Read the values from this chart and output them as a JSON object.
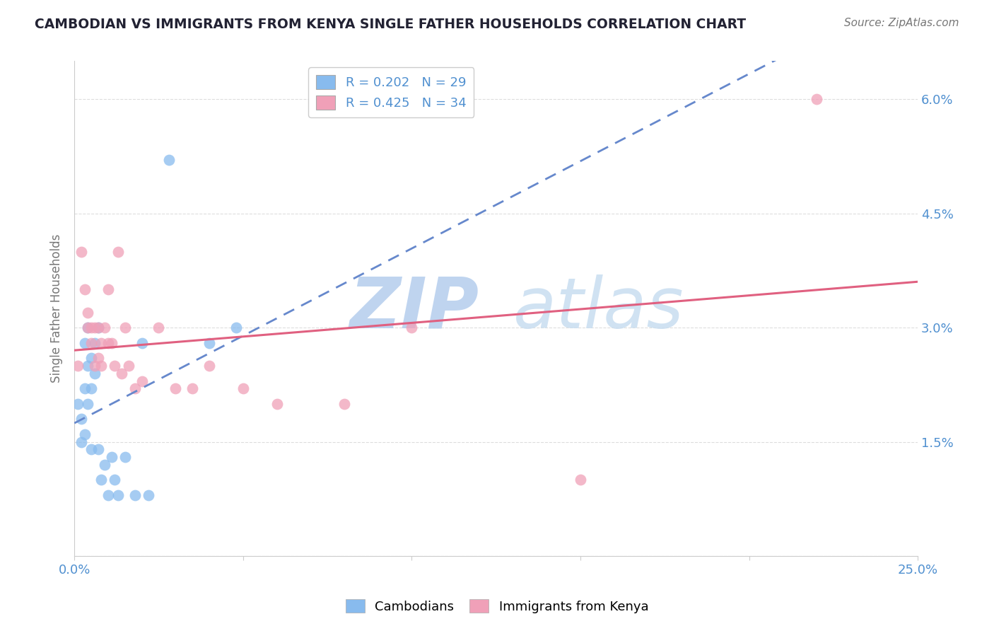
{
  "title": "CAMBODIAN VS IMMIGRANTS FROM KENYA SINGLE FATHER HOUSEHOLDS CORRELATION CHART",
  "source": "Source: ZipAtlas.com",
  "ylabel": "Single Father Households",
  "xlim": [
    0.0,
    0.25
  ],
  "ylim": [
    0.0,
    0.065
  ],
  "xticks": [
    0.0,
    0.05,
    0.1,
    0.15,
    0.2,
    0.25
  ],
  "yticks": [
    0.0,
    0.015,
    0.03,
    0.045,
    0.06
  ],
  "ytick_labels": [
    "",
    "1.5%",
    "3.0%",
    "4.5%",
    "6.0%"
  ],
  "xtick_labels": [
    "0.0%",
    "",
    "",
    "",
    "",
    "25.0%"
  ],
  "legend_r_cambodian": "R = 0.202",
  "legend_n_cambodian": "N = 29",
  "legend_r_kenya": "R = 0.425",
  "legend_n_kenya": "N = 34",
  "cambodian_color": "#88bbee",
  "kenya_color": "#f0a0b8",
  "cambodian_line_color": "#6688cc",
  "kenya_line_color": "#e06080",
  "watermark_zip": "ZIP",
  "watermark_atlas": "atlas",
  "watermark_color": "#d0e4f8",
  "title_color": "#222233",
  "axis_color": "#5090d0",
  "grid_color": "#dddddd",
  "cambodian_points": [
    [
      0.001,
      0.02
    ],
    [
      0.002,
      0.015
    ],
    [
      0.002,
      0.018
    ],
    [
      0.003,
      0.022
    ],
    [
      0.003,
      0.016
    ],
    [
      0.003,
      0.028
    ],
    [
      0.004,
      0.025
    ],
    [
      0.004,
      0.02
    ],
    [
      0.004,
      0.03
    ],
    [
      0.005,
      0.026
    ],
    [
      0.005,
      0.022
    ],
    [
      0.005,
      0.014
    ],
    [
      0.006,
      0.028
    ],
    [
      0.006,
      0.024
    ],
    [
      0.007,
      0.03
    ],
    [
      0.007,
      0.014
    ],
    [
      0.008,
      0.01
    ],
    [
      0.009,
      0.012
    ],
    [
      0.01,
      0.008
    ],
    [
      0.011,
      0.013
    ],
    [
      0.012,
      0.01
    ],
    [
      0.013,
      0.008
    ],
    [
      0.015,
      0.013
    ],
    [
      0.018,
      0.008
    ],
    [
      0.02,
      0.028
    ],
    [
      0.022,
      0.008
    ],
    [
      0.028,
      0.052
    ],
    [
      0.04,
      0.028
    ],
    [
      0.048,
      0.03
    ]
  ],
  "kenya_points": [
    [
      0.001,
      0.025
    ],
    [
      0.002,
      0.04
    ],
    [
      0.003,
      0.035
    ],
    [
      0.004,
      0.03
    ],
    [
      0.004,
      0.032
    ],
    [
      0.005,
      0.028
    ],
    [
      0.005,
      0.03
    ],
    [
      0.006,
      0.03
    ],
    [
      0.006,
      0.025
    ],
    [
      0.007,
      0.03
    ],
    [
      0.007,
      0.026
    ],
    [
      0.008,
      0.028
    ],
    [
      0.008,
      0.025
    ],
    [
      0.009,
      0.03
    ],
    [
      0.01,
      0.028
    ],
    [
      0.01,
      0.035
    ],
    [
      0.011,
      0.028
    ],
    [
      0.012,
      0.025
    ],
    [
      0.013,
      0.04
    ],
    [
      0.014,
      0.024
    ],
    [
      0.015,
      0.03
    ],
    [
      0.016,
      0.025
    ],
    [
      0.018,
      0.022
    ],
    [
      0.02,
      0.023
    ],
    [
      0.025,
      0.03
    ],
    [
      0.03,
      0.022
    ],
    [
      0.035,
      0.022
    ],
    [
      0.04,
      0.025
    ],
    [
      0.05,
      0.022
    ],
    [
      0.06,
      0.02
    ],
    [
      0.08,
      0.02
    ],
    [
      0.1,
      0.03
    ],
    [
      0.15,
      0.01
    ],
    [
      0.22,
      0.06
    ]
  ]
}
